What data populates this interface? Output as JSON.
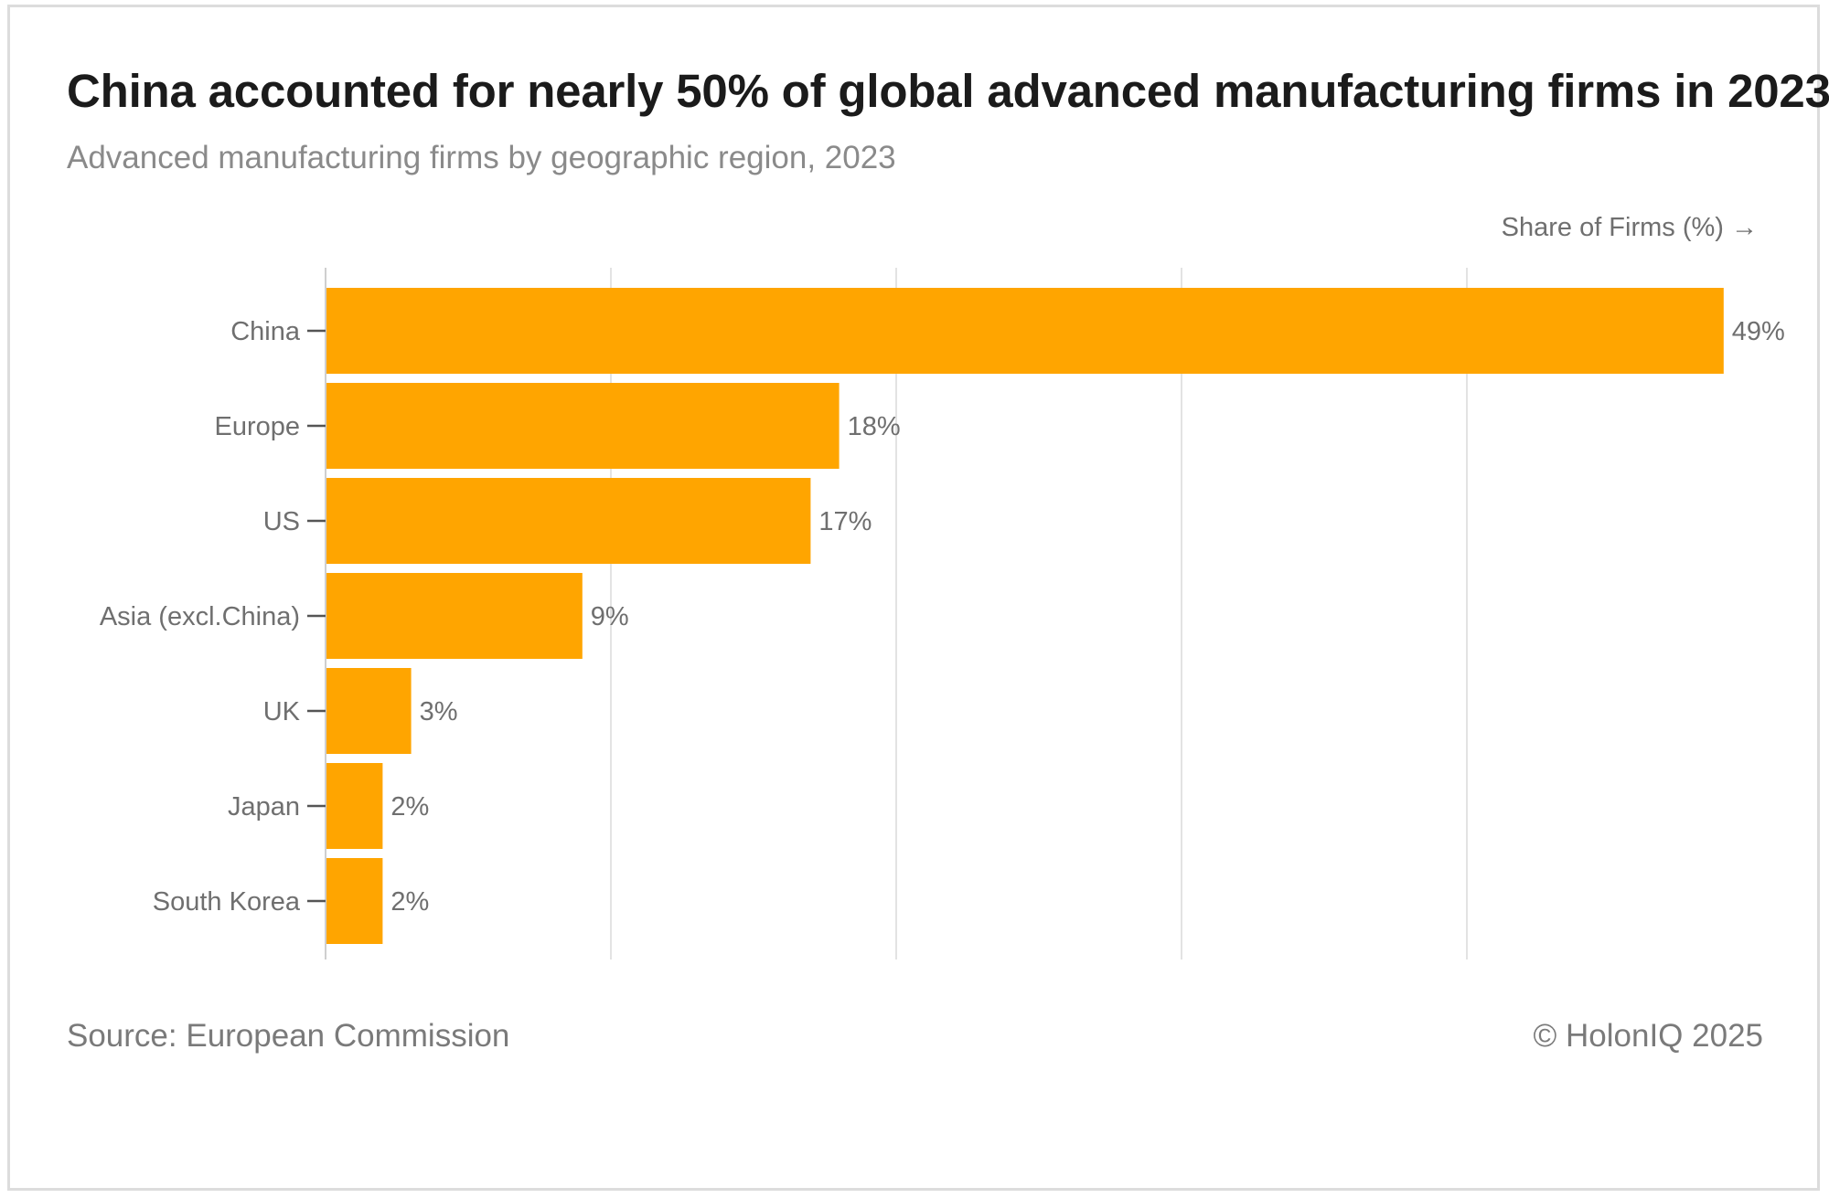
{
  "chart_data": {
    "type": "bar",
    "orientation": "horizontal",
    "title": "China accounted for nearly 50% of global advanced manufacturing firms in 2023",
    "subtitle": "Advanced manufacturing firms by geographic region, 2023",
    "xlabel": "Share of Firms (%) →",
    "ylabel": "",
    "categories": [
      "China",
      "Europe",
      "US",
      "Asia (excl.China)",
      "UK",
      "Japan",
      "South Korea"
    ],
    "values": [
      49,
      18,
      17,
      9,
      3,
      2,
      2
    ],
    "value_labels": [
      "49%",
      "18%",
      "17%",
      "9%",
      "3%",
      "2%",
      "2%"
    ],
    "xlim": [
      0,
      50
    ],
    "grid": true,
    "bar_color": "#FFA500",
    "source": "Source: European Commission",
    "copyright": "© HolonIQ 2025"
  }
}
